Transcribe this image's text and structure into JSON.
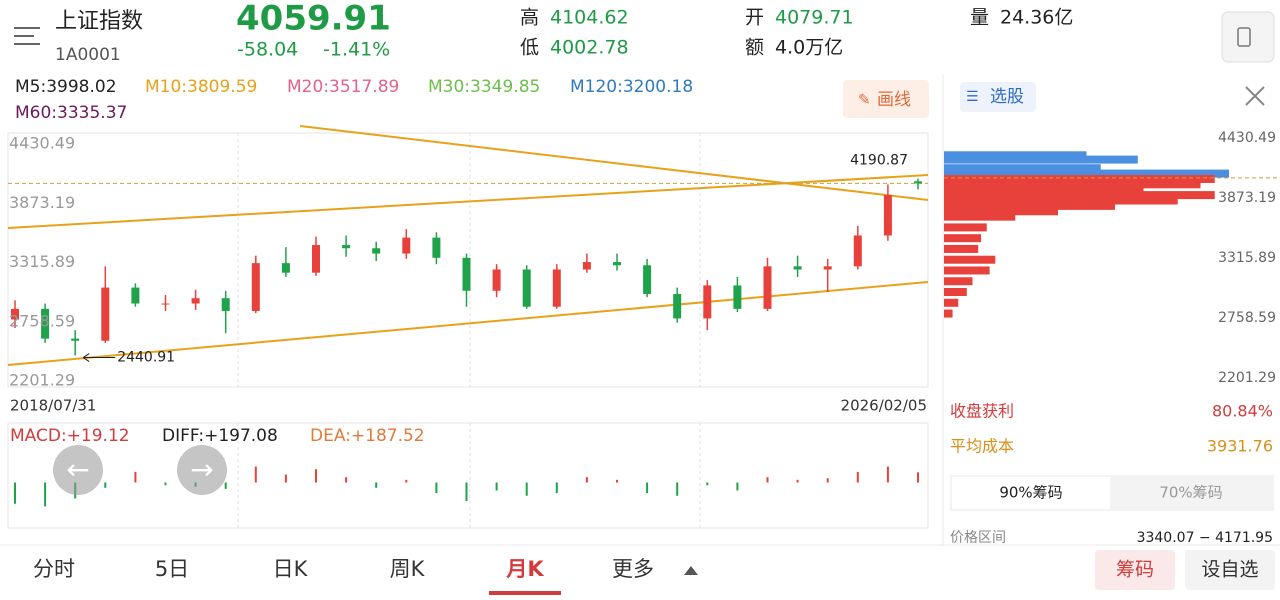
{
  "header": {
    "name": "上证指数",
    "code": "1A0001",
    "price": "4059.91",
    "change": "-58.04",
    "change_pct": "-1.41%",
    "stats": [
      {
        "label": "高",
        "value": "4104.62"
      },
      {
        "label": "低",
        "value": "4002.78"
      },
      {
        "label": "开",
        "value": "4079.71"
      },
      {
        "label": "额",
        "value": "4.0万亿"
      },
      {
        "label": "量",
        "value": "24.36亿"
      }
    ]
  },
  "ma": [
    {
      "label": "M5:3998.02",
      "color": "#222222"
    },
    {
      "label": "M10:3809.59",
      "color": "#e8a21a"
    },
    {
      "label": "M20:3517.89",
      "color": "#e4628a"
    },
    {
      "label": "M30:3349.85",
      "color": "#6cc04a"
    },
    {
      "label": "M120:3200.18",
      "color": "#2e7bbf"
    },
    {
      "label": "M60:3335.37",
      "color": "#6a1a5a"
    }
  ],
  "draw_button": "画线",
  "pick_button": "选股",
  "chart_data": {
    "type": "candlestick",
    "start": "2018/07/31",
    "end": "2026/02/05",
    "open": [
      2780,
      2880,
      2600,
      2580,
      3080,
      2930,
      2930,
      2980,
      2860,
      3310,
      3220,
      3480,
      3450,
      3400,
      3550,
      3360,
      3050,
      3250,
      2900,
      3250,
      3320,
      3290,
      3020,
      2790,
      3100,
      2880,
      3280,
      3250,
      3280,
      3570,
      4079.71
    ],
    "close": [
      2880,
      2600,
      2580,
      3080,
      2930,
      2930,
      2980,
      2860,
      3310,
      3220,
      3480,
      3450,
      3400,
      3550,
      3360,
      3050,
      3250,
      2900,
      3250,
      3320,
      3290,
      3020,
      2790,
      3100,
      2880,
      3280,
      3250,
      3280,
      3570,
      3950,
      4059.91
    ],
    "high": [
      2960,
      2930,
      2680,
      3280,
      3120,
      3010,
      3060,
      3050,
      3380,
      3460,
      3560,
      3570,
      3510,
      3630,
      3600,
      3400,
      3300,
      3290,
      3300,
      3400,
      3400,
      3350,
      3080,
      3150,
      3180,
      3360,
      3380,
      3350,
      3660,
      4050,
      4104.62
    ],
    "low": [
      2700,
      2560,
      2440.91,
      2560,
      2900,
      2860,
      2870,
      2650,
      2840,
      3180,
      3190,
      3370,
      3330,
      3350,
      3300,
      2900,
      2990,
      2880,
      2880,
      3220,
      3240,
      2990,
      2750,
      2680,
      2850,
      2860,
      3180,
      3040,
      3250,
      3520,
      4002.78
    ],
    "ylim": [
      2201.29,
      4430.49
    ],
    "yticks": [
      4430.49,
      3873.19,
      3315.89,
      2758.59,
      2201.29
    ],
    "up_color": "#e8403a",
    "down_color": "#1fa34a",
    "annotations": [
      {
        "text": "4190.87"
      },
      {
        "text": "2440.91"
      }
    ]
  },
  "macd": {
    "type": "bar",
    "labels": [
      {
        "text": "MACD:+19.12",
        "color": "#d23c3c"
      },
      {
        "text": "DIFF:+197.08",
        "color": "#222222"
      },
      {
        "text": "DEA:+187.52",
        "color": "#e07a3a"
      }
    ],
    "values": [
      -40,
      -45,
      -30,
      -10,
      20,
      -5,
      -8,
      -12,
      30,
      15,
      25,
      10,
      -10,
      5,
      -20,
      -35,
      -15,
      -25,
      -20,
      10,
      5,
      -20,
      -25,
      -5,
      -15,
      10,
      5,
      8,
      20,
      30,
      19.12
    ],
    "ylim": [
      -80,
      80
    ]
  },
  "chips": {
    "type": "bar",
    "prices": [
      4270,
      4230,
      4150,
      4100,
      4050,
      4000,
      3950,
      3900,
      3850,
      3800,
      3750,
      3700,
      3600,
      3500,
      3400,
      3300,
      3200,
      3100,
      3000,
      2900,
      2800
    ],
    "values": [
      50,
      68,
      55,
      100,
      95,
      90,
      70,
      95,
      82,
      60,
      40,
      25,
      15,
      13,
      12,
      18,
      16,
      10,
      8,
      5,
      3
    ],
    "ylim": [
      2201.29,
      4430.49
    ],
    "yticks": [
      4430.49,
      3873.19,
      3315.89,
      2758.59,
      2201.29
    ],
    "xlim": [
      0,
      100
    ],
    "above_color": "#4a8fe0",
    "below_color": "#e8403a"
  },
  "stats": {
    "profit_label": "收盘获利",
    "profit": "80.84%",
    "cost_label": "平均成本",
    "cost": "3931.76",
    "tabs": [
      "90%筹码",
      "70%筹码"
    ],
    "range_label": "价格区间",
    "range": "3340.07 − 4171.95"
  },
  "bottom": {
    "tabs": [
      "分时",
      "5日",
      "日K",
      "周K",
      "月K",
      "更多"
    ],
    "active": 4,
    "buttons": [
      "筹码",
      "设自选"
    ]
  }
}
